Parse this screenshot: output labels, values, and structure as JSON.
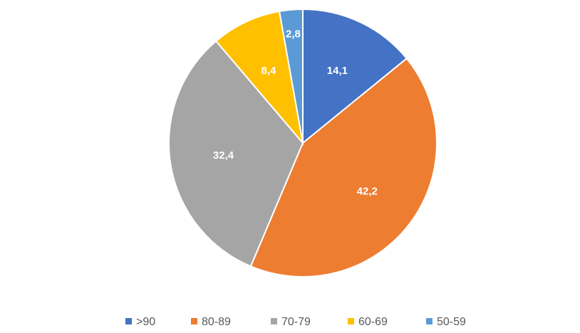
{
  "chart_data": {
    "type": "pie",
    "categories": [
      ">90",
      "80-89",
      "70-79",
      "60-69",
      "50-59"
    ],
    "values": [
      14.1,
      42.2,
      32.4,
      8.4,
      2.8
    ],
    "labels": [
      "14,1",
      "42,2",
      "32,4",
      "8,4",
      "2,8"
    ],
    "colors": [
      "#4472C4",
      "#ED7D31",
      "#A5A5A5",
      "#FFC000",
      "#5B9BD5"
    ],
    "start_angle": "12 o'clock",
    "direction": "clockwise",
    "legend_position": "bottom"
  }
}
